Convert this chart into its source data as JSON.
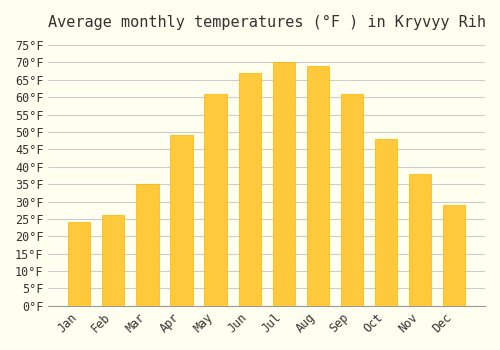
{
  "title": "Average monthly temperatures (°F ) in Kryvyy Rih",
  "months": [
    "Jan",
    "Feb",
    "Mar",
    "Apr",
    "May",
    "Jun",
    "Jul",
    "Aug",
    "Sep",
    "Oct",
    "Nov",
    "Dec"
  ],
  "values": [
    24,
    26,
    35,
    49,
    61,
    67,
    70,
    69,
    61,
    48,
    38,
    29
  ],
  "bar_color_top": "#FFC93C",
  "bar_color_bottom": "#FFB300",
  "background_color": "#FFFFF0",
  "grid_color": "#CCCCCC",
  "text_color": "#333333",
  "ylim": [
    0,
    77
  ],
  "yticks": [
    0,
    5,
    10,
    15,
    20,
    25,
    30,
    35,
    40,
    45,
    50,
    55,
    60,
    65,
    70,
    75
  ],
  "title_fontsize": 11,
  "tick_fontsize": 8.5,
  "font_family": "monospace"
}
